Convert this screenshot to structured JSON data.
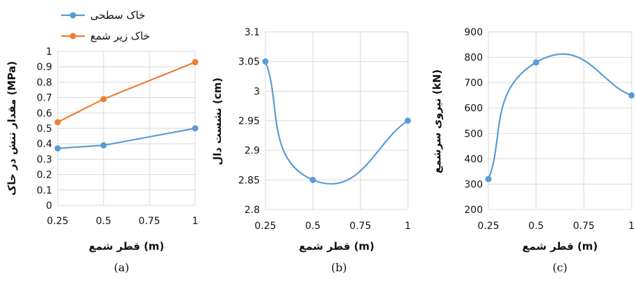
{
  "chart_data": [
    {
      "type": "line",
      "caption": "(a)",
      "xlabel": "قطر شمع (m)",
      "ylabel": "مقدار تنش در خاک (MPa)",
      "x": [
        0.25,
        0.5,
        1
      ],
      "xticks": [
        "0.25",
        "0.5",
        "0.75",
        "1"
      ],
      "xlim": [
        0.25,
        1
      ],
      "ylim": [
        0,
        1
      ],
      "yticks": [
        "0",
        "0.1",
        "0.2",
        "0.3",
        "0.4",
        "0.5",
        "0.6",
        "0.7",
        "0.8",
        "0.9",
        "1"
      ],
      "grid": true,
      "legend_position": "top-left",
      "series": [
        {
          "name": "خاک سطحی",
          "values": [
            0.37,
            0.39,
            0.5
          ],
          "color": "#5b9bd5"
        },
        {
          "name": "خاک زیر شمع",
          "values": [
            0.54,
            0.69,
            0.93
          ],
          "color": "#ed7d31"
        }
      ]
    },
    {
      "type": "line",
      "caption": "(b)",
      "xlabel": "قطر شمع (m)",
      "ylabel": "نشست دال (cm)",
      "x": [
        0.25,
        0.5,
        1
      ],
      "xticks": [
        "0.25",
        "0.5",
        "0.75",
        "1"
      ],
      "xlim": [
        0.25,
        1
      ],
      "ylim": [
        2.8,
        3.1
      ],
      "yticks": [
        "2.8",
        "2.85",
        "2.9",
        "2.95",
        "3",
        "3.05",
        "3.1"
      ],
      "grid": true,
      "series": [
        {
          "values": [
            3.05,
            2.85,
            2.95
          ],
          "color": "#5b9bd5"
        }
      ]
    },
    {
      "type": "line",
      "caption": "(c)",
      "xlabel": "قطر شمع (m)",
      "ylabel": "نیروی سرشمع (kN)",
      "x": [
        0.25,
        0.5,
        1
      ],
      "xticks": [
        "0.25",
        "0.5",
        "0.75",
        "1"
      ],
      "xlim": [
        0.25,
        1
      ],
      "ylim": [
        200,
        900
      ],
      "yticks": [
        "200",
        "300",
        "400",
        "500",
        "600",
        "700",
        "800",
        "900"
      ],
      "grid": true,
      "series": [
        {
          "values": [
            320,
            780,
            650
          ],
          "color": "#5b9bd5"
        }
      ]
    }
  ]
}
